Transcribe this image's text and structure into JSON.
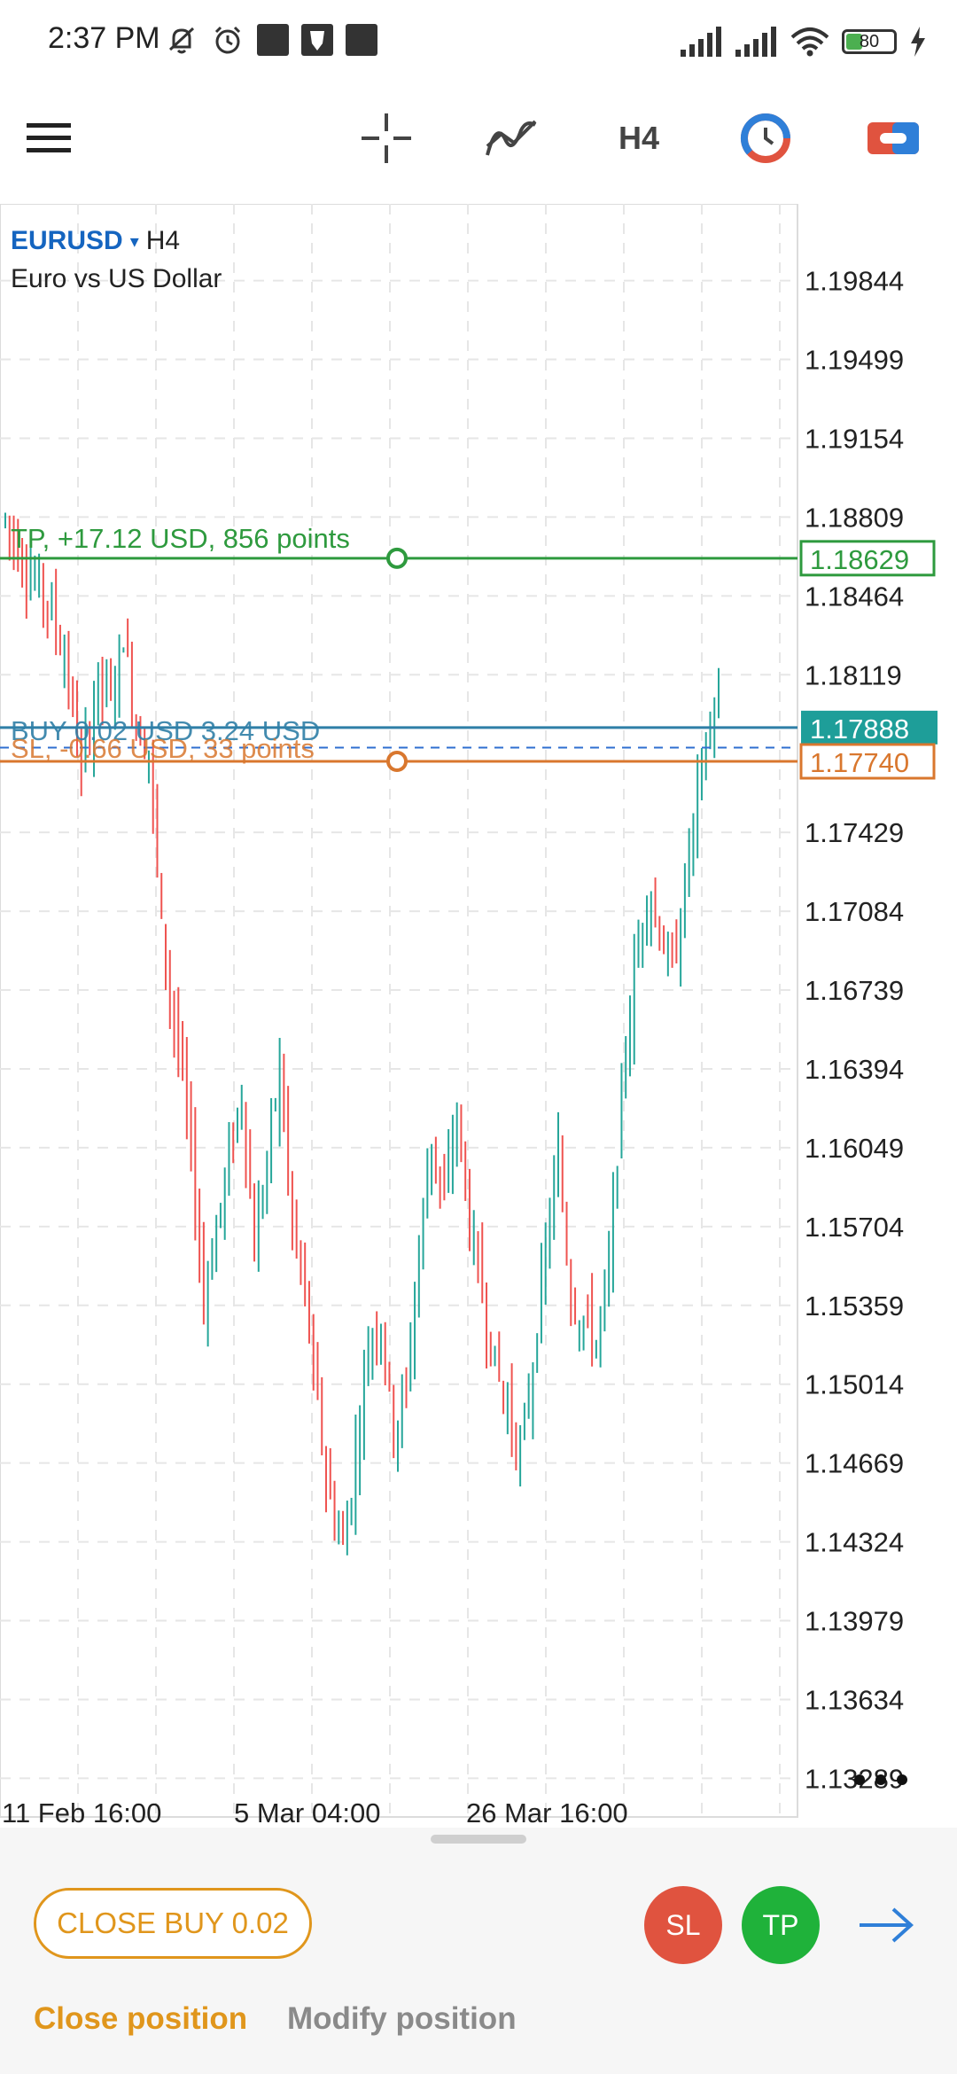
{
  "status_bar": {
    "time": "2:37 PM",
    "battery_level": "80",
    "icons": [
      "mute-bell-icon",
      "alarm-icon",
      "notification-square-icon",
      "app-notification-icon",
      "notification-square-icon",
      "signal-icon",
      "signal-icon",
      "wifi-icon",
      "battery-icon",
      "charging-bolt-icon"
    ]
  },
  "toolbar": {
    "timeframe": "H4",
    "icons": [
      "menu-icon",
      "crosshair-icon",
      "indicators-icon",
      "timeframe-label",
      "objects-icon",
      "trade-icon"
    ]
  },
  "chart_header": {
    "symbol": "EURUSD",
    "caret": "▾",
    "timeframe": "H4",
    "description": "Euro vs US Dollar"
  },
  "chart_data": {
    "type": "candlestick",
    "symbol": "EURUSD",
    "timeframe": "H4",
    "y_ticks": [
      "1.19844",
      "1.19499",
      "1.19154",
      "1.18809",
      "1.18464",
      "1.18119",
      "1.17429",
      "1.17084",
      "1.16739",
      "1.16394",
      "1.16049",
      "1.15704",
      "1.15359",
      "1.15014",
      "1.14669",
      "1.14324",
      "1.13979",
      "1.13634",
      "1.13289"
    ],
    "y_range": [
      1.1312,
      1.2018
    ],
    "x_ticks": [
      "11 Feb 16:00",
      "5 Mar 04:00",
      "26 Mar 16:00"
    ],
    "grid": true,
    "levels": {
      "tp": {
        "label": "TP, +17.12 USD, 856 points",
        "price": "1.18629",
        "price_value": 1.18629,
        "color": "#2e9a3e"
      },
      "buy": {
        "label": "BUY 0.02 USD 3.24 USD",
        "price": "1.17888",
        "price_value": 1.17888,
        "color": "#2f7fa7"
      },
      "sl": {
        "label": "SL, -0.66 USD, 33 points",
        "price": "1.17740",
        "price_value": 1.1774,
        "color": "#d9772e"
      },
      "bid_value": 1.178
    },
    "colors": {
      "bull": "#26a69a",
      "bear": "#ef5350",
      "grid": "#e6e6e6"
    },
    "price_path": [
      [
        0,
        1.188
      ],
      [
        6,
        1.1855
      ],
      [
        10,
        1.1845
      ],
      [
        14,
        1.182
      ],
      [
        18,
        1.177
      ],
      [
        22,
        1.181
      ],
      [
        25,
        1.18
      ],
      [
        28,
        1.183
      ],
      [
        31,
        1.179
      ],
      [
        34,
        1.178
      ],
      [
        37,
        1.17
      ],
      [
        40,
        1.166
      ],
      [
        43,
        1.162
      ],
      [
        47,
        1.154
      ],
      [
        50,
        1.157
      ],
      [
        53,
        1.16
      ],
      [
        56,
        1.163
      ],
      [
        59,
        1.156
      ],
      [
        62,
        1.16
      ],
      [
        65,
        1.164
      ],
      [
        68,
        1.157
      ],
      [
        71,
        1.154
      ],
      [
        74,
        1.149
      ],
      [
        77,
        1.145
      ],
      [
        80,
        1.143
      ],
      [
        83,
        1.147
      ],
      [
        86,
        1.152
      ],
      [
        89,
        1.153
      ],
      [
        92,
        1.148
      ],
      [
        95,
        1.15
      ],
      [
        98,
        1.156
      ],
      [
        101,
        1.161
      ],
      [
        104,
        1.158
      ],
      [
        107,
        1.162
      ],
      [
        110,
        1.157
      ],
      [
        113,
        1.154
      ],
      [
        116,
        1.151
      ],
      [
        119,
        1.149
      ],
      [
        122,
        1.147
      ],
      [
        125,
        1.151
      ],
      [
        128,
        1.156
      ],
      [
        131,
        1.16
      ],
      [
        134,
        1.154
      ],
      [
        137,
        1.153
      ],
      [
        140,
        1.152
      ],
      [
        143,
        1.155
      ],
      [
        146,
        1.163
      ],
      [
        149,
        1.168
      ],
      [
        152,
        1.172
      ],
      [
        155,
        1.17
      ],
      [
        158,
        1.168
      ],
      [
        161,
        1.172
      ],
      [
        164,
        1.176
      ],
      [
        167,
        1.179
      ],
      [
        169,
        1.18
      ]
    ]
  },
  "more_icon": "more-dots-icon",
  "bottom_panel": {
    "close_button": "CLOSE BUY 0.02",
    "sl_button": "SL",
    "tp_button": "TP",
    "arrow_icon": "arrow-right-icon",
    "tab_close": "Close position",
    "tab_modify": "Modify position"
  }
}
